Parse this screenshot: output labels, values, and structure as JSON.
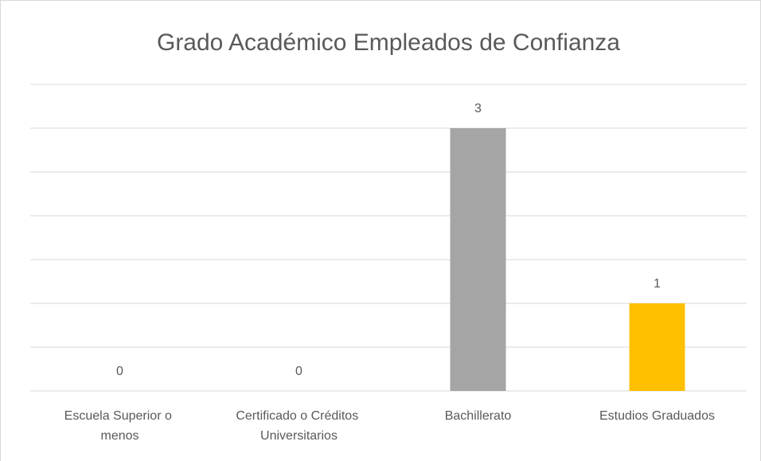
{
  "chart_data": {
    "type": "bar",
    "title": "Grado Académico Empleados de Confianza",
    "categories": [
      "Escuela Superior o menos",
      "Certificado o Créditos Universitarios",
      "Bachillerato",
      "Estudios Graduados"
    ],
    "values": [
      0,
      0,
      3,
      1
    ],
    "colors": [
      "#4472c4",
      "#ed7d31",
      "#a5a5a5",
      "#ffc000"
    ],
    "ylim": [
      0,
      3.5
    ],
    "yticks": [
      0,
      0.5,
      1,
      1.5,
      2,
      2.5,
      3,
      3.5
    ],
    "grid": true,
    "data_labels": true
  }
}
